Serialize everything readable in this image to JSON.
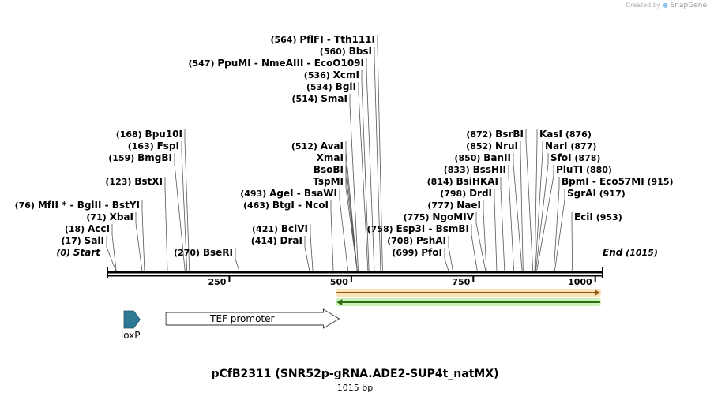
{
  "credit": {
    "prefix": "Created by",
    "brand": "SnapGene",
    "logo_icon": "snapgene-logo-icon"
  },
  "map": {
    "title": "pCfB2311 (SNR52p-gRNA.ADE2-SUP4t_natMX)",
    "length_label": "1015 bp",
    "length_bp": 1015,
    "ticks": [
      {
        "bp": 250,
        "label": "250"
      },
      {
        "bp": 500,
        "label": "500"
      },
      {
        "bp": 750,
        "label": "750"
      },
      {
        "bp": 1000,
        "label": "1000"
      }
    ],
    "start_label": {
      "pos": "(0)",
      "name": "Start",
      "bp": 0
    },
    "end_label": {
      "pos": "(1015)",
      "name": "End",
      "bp": 1015
    }
  },
  "sites": [
    {
      "pos": "(17)",
      "names": "SalI",
      "bp": 17
    },
    {
      "pos": "(18)",
      "names": "AccI",
      "bp": 18
    },
    {
      "pos": "(71)",
      "names": "XbaI",
      "bp": 71
    },
    {
      "pos": "(76)",
      "names": "MfII * - BglII - BstYI",
      "bp": 76
    },
    {
      "pos": "(123)",
      "names": "BstXI",
      "bp": 123
    },
    {
      "pos": "(159)",
      "names": "BmgBI",
      "bp": 159
    },
    {
      "pos": "(163)",
      "names": "FspI",
      "bp": 163
    },
    {
      "pos": "(168)",
      "names": "Bpu10I",
      "bp": 168
    },
    {
      "pos": "(270)",
      "names": "BseRI",
      "bp": 270
    },
    {
      "pos": "(414)",
      "names": "DraI",
      "bp": 414
    },
    {
      "pos": "(421)",
      "names": "BclVI",
      "bp": 421
    },
    {
      "pos": "(463)",
      "names": "BtgI - NcoI",
      "bp": 463
    },
    {
      "pos": "(493)",
      "names": "AgeI - BsaWI",
      "bp": 493
    },
    {
      "pos": "",
      "names": "TspMI",
      "bp": 512
    },
    {
      "pos": "",
      "names": "BsoBI",
      "bp": 512
    },
    {
      "pos": "",
      "names": "XmaI",
      "bp": 512
    },
    {
      "pos": "(512)",
      "names": "AvaI",
      "bp": 512
    },
    {
      "pos": "(514)",
      "names": "SmaI",
      "bp": 514
    },
    {
      "pos": "(534)",
      "names": "BglI",
      "bp": 534
    },
    {
      "pos": "(536)",
      "names": "XcmI",
      "bp": 536
    },
    {
      "pos": "(547)",
      "names": "PpuMI - NmeAIII - EcoO109I",
      "bp": 547
    },
    {
      "pos": "(560)",
      "names": "BbsI",
      "bp": 560
    },
    {
      "pos": "(564)",
      "names": "PflFI - Tth111I",
      "bp": 564
    },
    {
      "pos": "(699)",
      "names": "PfoI",
      "bp": 699
    },
    {
      "pos": "(708)",
      "names": "PshAI",
      "bp": 708
    },
    {
      "pos": "(758)",
      "names": "Esp3I - BsmBI",
      "bp": 758
    },
    {
      "pos": "(775)",
      "names": "NgoMIV",
      "bp": 775
    },
    {
      "pos": "(777)",
      "names": "NaeI",
      "bp": 777
    },
    {
      "pos": "(798)",
      "names": "DrdI",
      "bp": 798
    },
    {
      "pos": "(814)",
      "names": "BsiHKAI",
      "bp": 814
    },
    {
      "pos": "(833)",
      "names": "BssHII",
      "bp": 833
    },
    {
      "pos": "(850)",
      "names": "BanII",
      "bp": 850
    },
    {
      "pos": "(852)",
      "names": "NruI",
      "bp": 852
    },
    {
      "pos": "(872)",
      "names": "BsrBI",
      "bp": 872
    },
    {
      "pos": "(876)",
      "names": "KasI",
      "bp": 876
    },
    {
      "pos": "(877)",
      "names": "NarI",
      "bp": 877
    },
    {
      "pos": "(878)",
      "names": "SfoI",
      "bp": 878
    },
    {
      "pos": "(880)",
      "names": "PluTI",
      "bp": 880
    },
    {
      "pos": "(915)",
      "names": "BpmI - Eco57MI",
      "bp": 915
    },
    {
      "pos": "(917)",
      "names": "SgrAI",
      "bp": 917
    },
    {
      "pos": "(953)",
      "names": "EciI",
      "bp": 953
    }
  ],
  "features": [
    {
      "name": "loxP",
      "start_bp": 34,
      "end_bp": 67,
      "direction": "forward",
      "color": "#2e7a94"
    },
    {
      "name": "TEF promoter",
      "start_bp": 120,
      "end_bp": 475,
      "direction": "forward",
      "color": "#ffffff"
    },
    {
      "name": "",
      "start_bp": 470,
      "end_bp": 1010,
      "direction": "forward",
      "color": "#f5a623"
    },
    {
      "name": "",
      "start_bp": 470,
      "end_bp": 1010,
      "direction": "reverse",
      "color": "#7dd64f"
    }
  ]
}
